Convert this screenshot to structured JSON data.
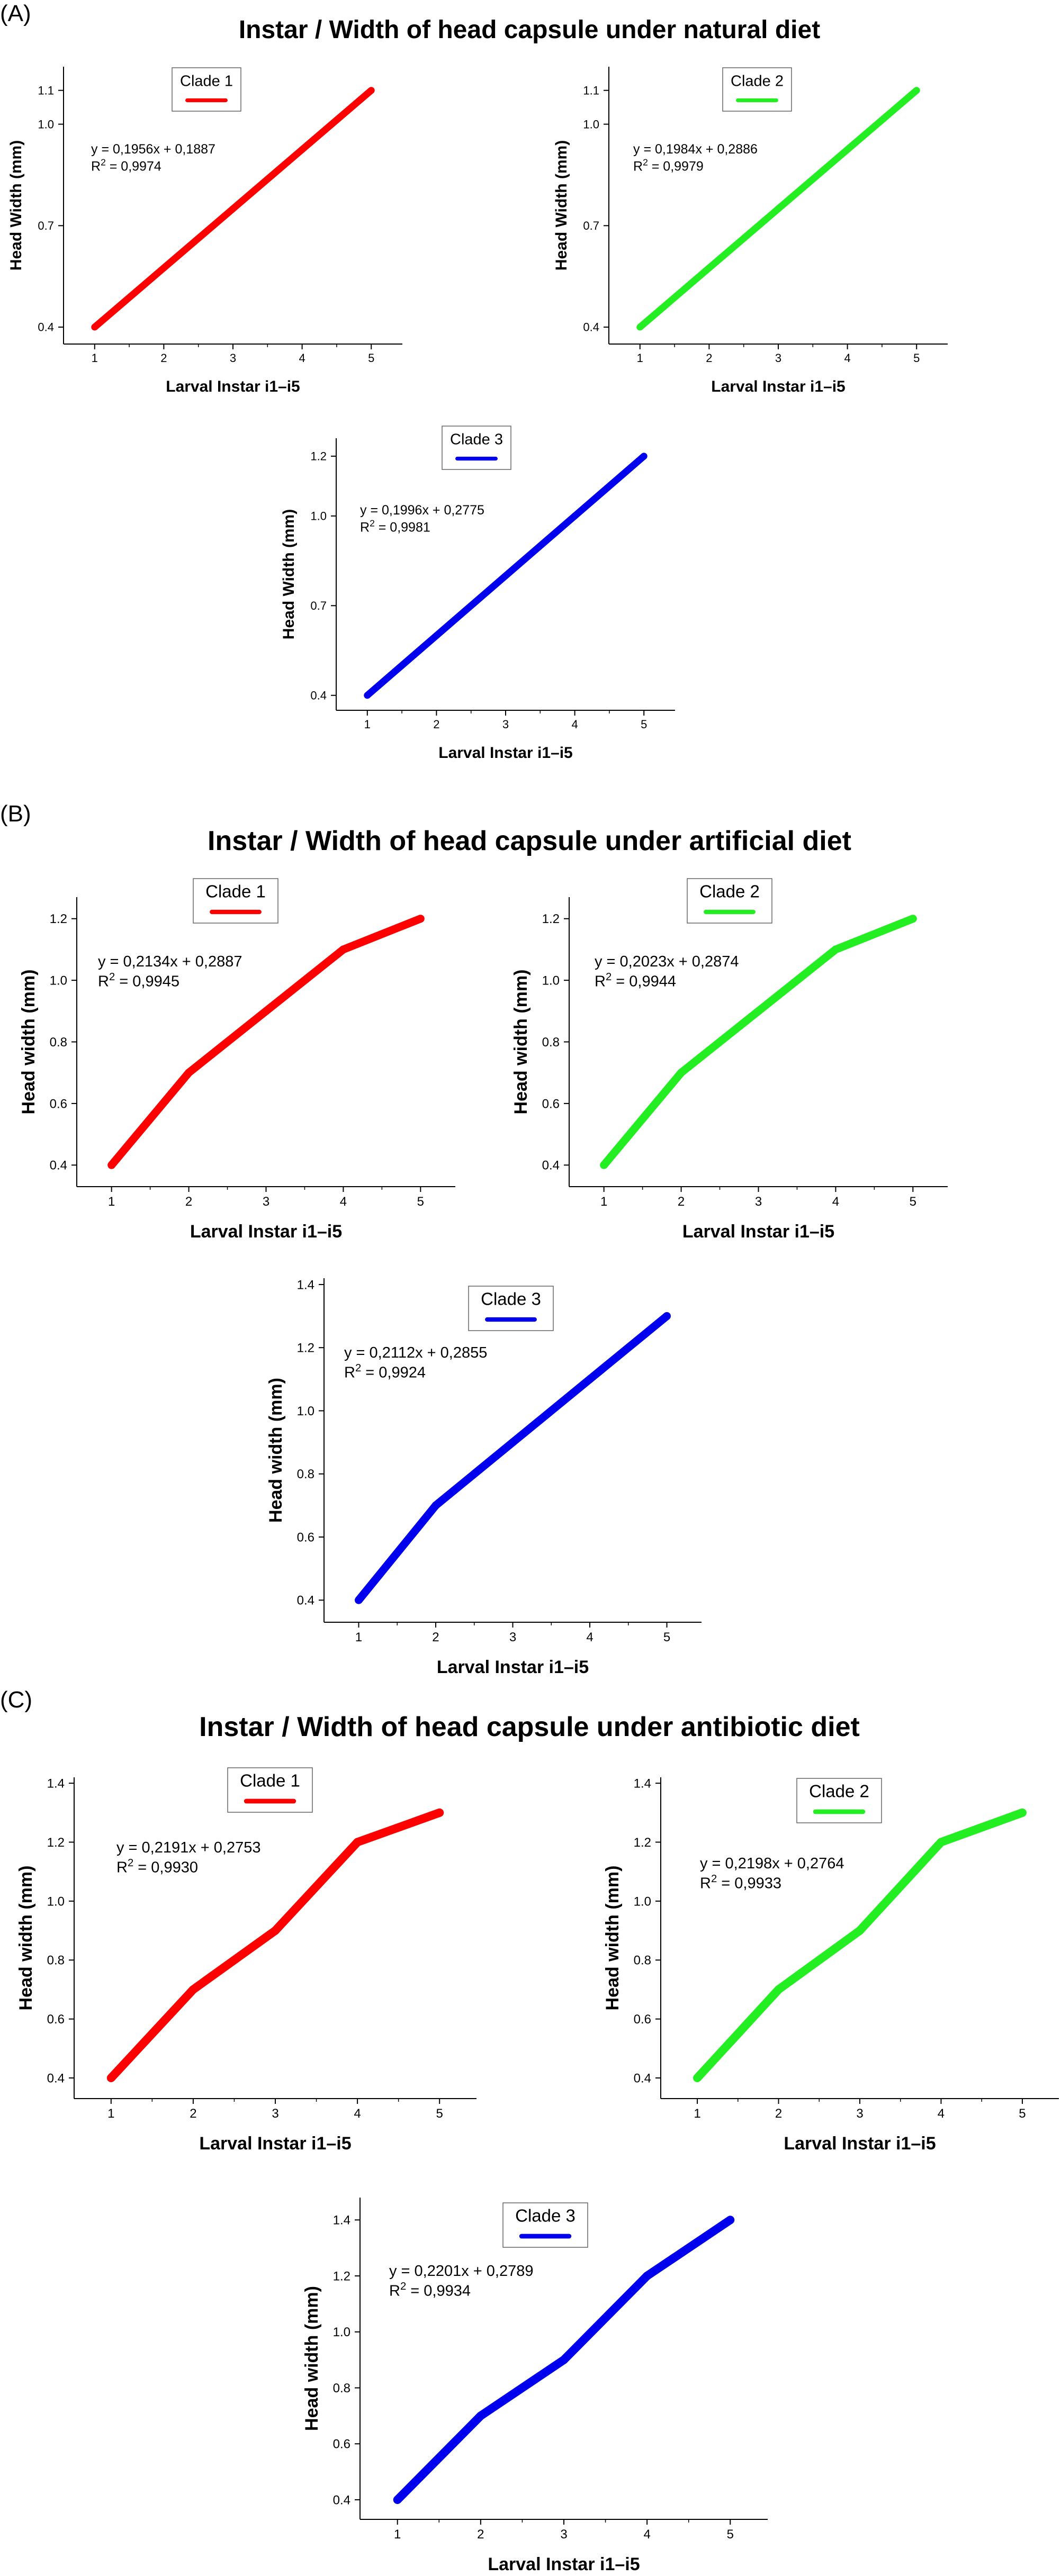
{
  "panels": [
    {
      "label": "(A)",
      "title": "Instar / Width of head capsule under natural diet",
      "chart_data": [
        {
          "type": "line",
          "legend": "Clade 1",
          "color": "#ff0000",
          "xlabel": "Larval Instar i1–i5",
          "ylabel": "Head Width (mm)",
          "x": [
            1,
            2,
            3,
            4,
            5
          ],
          "values": [
            0.4,
            0.575,
            0.75,
            0.925,
            1.1
          ],
          "yticks": [
            "0.4",
            "0.7",
            "1.0",
            "1.1"
          ],
          "xticks": [
            "1",
            "2",
            "3",
            "4",
            "5"
          ],
          "equation": "y = 0,1956x + 0,1887",
          "r2_prefix": "R",
          "r2_sup": "2",
          "r2_value": " = 0,9974"
        },
        {
          "type": "line",
          "legend": "Clade 2",
          "color": "#22ee22",
          "xlabel": "Larval Instar i1–i5",
          "ylabel": "Head Width (mm)",
          "x": [
            1,
            2,
            3,
            4,
            5
          ],
          "values": [
            0.4,
            0.575,
            0.75,
            0.925,
            1.1
          ],
          "yticks": [
            "0.4",
            "0.7",
            "1.0",
            "1.1"
          ],
          "xticks": [
            "1",
            "2",
            "3",
            "4",
            "5"
          ],
          "equation": "y = 0,1984x + 0,2886",
          "r2_prefix": "R",
          "r2_sup": "2",
          "r2_value": " = 0,9979"
        },
        {
          "type": "line",
          "legend": "Clade 3",
          "color": "#0000ee",
          "xlabel": "Larval Instar i1–i5",
          "ylabel": "Head Width (mm)",
          "x": [
            1,
            2,
            3,
            4,
            5
          ],
          "values": [
            0.4,
            0.6,
            0.8,
            1.0,
            1.2
          ],
          "yticks": [
            "0.4",
            "0.7",
            "1.0",
            "1.2"
          ],
          "xticks": [
            "1",
            "2",
            "3",
            "4",
            "5"
          ],
          "equation": "y = 0,1996x + 0,2775",
          "r2_prefix": "R",
          "r2_sup": "2",
          "r2_value": " = 0,9981"
        }
      ]
    },
    {
      "label": "(B)",
      "title": "Instar / Width of head capsule under artificial diet",
      "chart_data": [
        {
          "type": "line",
          "legend": "Clade 1",
          "color": "#ff0000",
          "xlabel": "Larval Instar i1–i5",
          "ylabel": "Head width (mm)",
          "x": [
            1,
            2,
            3,
            4,
            5
          ],
          "values": [
            0.4,
            0.7,
            0.9,
            1.1,
            1.2
          ],
          "yticks": [
            "0.4",
            "0.6",
            "0.8",
            "1.0",
            "1.2"
          ],
          "xticks": [
            "1",
            "2",
            "3",
            "4",
            "5"
          ],
          "equation": "y = 0,2134x + 0,2887",
          "r2_prefix": "R",
          "r2_sup": "2",
          "r2_value": " = 0,9945"
        },
        {
          "type": "line",
          "legend": "Clade 2",
          "color": "#22ee22",
          "xlabel": "Larval Instar i1–i5",
          "ylabel": "Head width (mm)",
          "x": [
            1,
            2,
            3,
            4,
            5
          ],
          "values": [
            0.4,
            0.7,
            0.9,
            1.1,
            1.2
          ],
          "yticks": [
            "0.4",
            "0.6",
            "0.8",
            "1.0",
            "1.2"
          ],
          "xticks": [
            "1",
            "2",
            "3",
            "4",
            "5"
          ],
          "equation": "y = 0,2023x + 0,2874",
          "r2_prefix": "R",
          "r2_sup": "2",
          "r2_value": " = 0,9944"
        },
        {
          "type": "line",
          "legend": "Clade 3",
          "color": "#0000ee",
          "xlabel": "Larval Instar i1–i5",
          "ylabel": "Head width (mm)",
          "x": [
            1,
            2,
            3,
            4,
            5
          ],
          "values": [
            0.4,
            0.7,
            0.9,
            1.1,
            1.3
          ],
          "yticks": [
            "0.4",
            "0.6",
            "0.8",
            "1.0",
            "1.2",
            "1.4"
          ],
          "xticks": [
            "1",
            "2",
            "3",
            "4",
            "5"
          ],
          "equation": "y = 0,2112x + 0,2855",
          "r2_prefix": "R",
          "r2_sup": "2",
          "r2_value": " = 0,9924"
        }
      ]
    },
    {
      "label": "(C)",
      "title": "Instar / Width of head capsule under antibiotic diet",
      "chart_data": [
        {
          "type": "line",
          "legend": "Clade 1",
          "color": "#ff0000",
          "xlabel": "Larval Instar i1–i5",
          "ylabel": "Head width (mm)",
          "x": [
            1,
            2,
            3,
            4,
            5
          ],
          "values": [
            0.4,
            0.7,
            0.9,
            1.2,
            1.3
          ],
          "yticks": [
            "0.4",
            "0.6",
            "0.8",
            "1.0",
            "1.2",
            "1.4"
          ],
          "xticks": [
            "1",
            "2",
            "3",
            "4",
            "5"
          ],
          "equation": "y = 0,2191x + 0,2753",
          "r2_prefix": "R",
          "r2_sup": "2",
          "r2_value": " = 0,9930"
        },
        {
          "type": "line",
          "legend": "Clade 2",
          "color": "#22ee22",
          "xlabel": "Larval Instar i1–i5",
          "ylabel": "Head width (mm)",
          "x": [
            1,
            2,
            3,
            4,
            5
          ],
          "values": [
            0.4,
            0.7,
            0.9,
            1.2,
            1.3
          ],
          "yticks": [
            "0.4",
            "0.6",
            "0.8",
            "1.0",
            "1.2",
            "1.4"
          ],
          "xticks": [
            "1",
            "2",
            "3",
            "4",
            "5"
          ],
          "equation": "y = 0,2198x + 0,2764",
          "r2_prefix": "R",
          "r2_sup": "2",
          "r2_value": " = 0,9933"
        },
        {
          "type": "line",
          "legend": "Clade 3",
          "color": "#0000ee",
          "xlabel": "Larval Instar i1–i5",
          "ylabel": "Head width (mm)",
          "x": [
            1,
            2,
            3,
            4,
            5
          ],
          "values": [
            0.4,
            0.7,
            0.9,
            1.2,
            1.4
          ],
          "yticks": [
            "0.4",
            "0.6",
            "0.8",
            "1.0",
            "1.2",
            "1.4"
          ],
          "xticks": [
            "1",
            "2",
            "3",
            "4",
            "5"
          ],
          "equation": "y = 0,2201x + 0,2789",
          "r2_prefix": "R",
          "r2_sup": "2",
          "r2_value": " = 0,9934"
        }
      ]
    }
  ]
}
